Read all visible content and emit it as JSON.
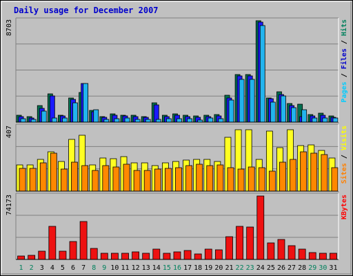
{
  "chart_data": {
    "type": "bar",
    "title": "Daily usage for December 2007",
    "x": [
      "1",
      "2",
      "3",
      "4",
      "5",
      "6",
      "7",
      "8",
      "9",
      "10",
      "11",
      "12",
      "13",
      "14",
      "15",
      "16",
      "17",
      "18",
      "19",
      "20",
      "21",
      "22",
      "23",
      "24",
      "25",
      "26",
      "27",
      "28",
      "29",
      "30",
      "31"
    ],
    "weekend_days": [
      "1",
      "2",
      "8",
      "9",
      "15",
      "16",
      "22",
      "23",
      "29",
      "30"
    ],
    "panels": [
      {
        "id": "top",
        "max_label": "8703",
        "ymax": 8703,
        "legend": [
          {
            "text": "Pages",
            "color": "#00ccff"
          },
          {
            "text": " / ",
            "color": "#000000"
          },
          {
            "text": "Files",
            "color": "#0000cc"
          },
          {
            "text": " / ",
            "color": "#000000"
          },
          {
            "text": "Hits",
            "color": "#00805c"
          }
        ],
        "series": [
          {
            "name": "Hits",
            "color": "#007050",
            "values": [
              570,
              460,
              1400,
              2440,
              620,
              2100,
              2530,
              1020,
              470,
              720,
              620,
              580,
              480,
              1640,
              580,
              720,
              620,
              530,
              600,
              660,
              2290,
              4110,
              4110,
              8703,
              2090,
              2600,
              1570,
              1560,
              670,
              780,
              530
            ]
          },
          {
            "name": "Files",
            "color": "#1a1aff",
            "values": [
              470,
              370,
              1160,
              2240,
              520,
              1960,
              3300,
              880,
              390,
              580,
              540,
              470,
              390,
              1500,
              460,
              600,
              460,
              440,
              500,
              540,
              2060,
              3960,
              3960,
              8600,
              2000,
              2370,
              1420,
              460,
              540,
              590,
              420
            ]
          },
          {
            "name": "Pages",
            "color": "#22b4ee",
            "values": [
              290,
              240,
              950,
              360,
              330,
              1630,
              3290,
              1040,
              240,
              310,
              330,
              250,
              240,
              230,
              280,
              320,
              280,
              190,
              360,
              290,
              1920,
              3670,
              3670,
              8300,
              1690,
              2250,
              1240,
              1080,
              330,
              350,
              330
            ]
          }
        ]
      },
      {
        "id": "middle",
        "max_label": "407",
        "ymax": 407,
        "legend": [
          {
            "text": "Sites",
            "color": "#ff8000"
          },
          {
            "text": " / ",
            "color": "#000000"
          },
          {
            "text": "Visits",
            "color": "#ffff00"
          }
        ],
        "series": [
          {
            "name": "Visits",
            "color": "#ffff22",
            "values": [
              165,
              165,
              200,
              250,
              190,
              330,
              355,
              165,
              210,
              205,
              220,
              180,
              180,
              160,
              180,
              190,
              195,
              200,
              200,
              190,
              340,
              390,
              390,
              200,
              380,
              275,
              390,
              290,
              295,
              260,
              210
            ]
          },
          {
            "name": "Sites",
            "color": "#ff8800",
            "values": [
              145,
              145,
              180,
              240,
              140,
              185,
              160,
              130,
              160,
              155,
              170,
              130,
              130,
              140,
              145,
              150,
              160,
              170,
              160,
              165,
              150,
              140,
              155,
              150,
              125,
              185,
              200,
              250,
              240,
              230,
              150
            ]
          }
        ]
      },
      {
        "id": "bottom",
        "max_label": "74173",
        "ymax": 74173,
        "legend": [
          {
            "text": "KBytes",
            "color": "#ff0000"
          }
        ],
        "series": [
          {
            "name": "KBytes",
            "color": "#ee1111",
            "values": [
              4200,
              4600,
              9400,
              39000,
              9800,
              20800,
              44500,
              12500,
              7000,
              7500,
              7200,
              8500,
              7000,
              11700,
              7200,
              9000,
              10500,
              6200,
              12400,
              11500,
              26400,
              38400,
              38200,
              74173,
              19000,
              23700,
              16300,
              12400,
              8000,
              7600,
              7200
            ]
          }
        ]
      }
    ]
  }
}
